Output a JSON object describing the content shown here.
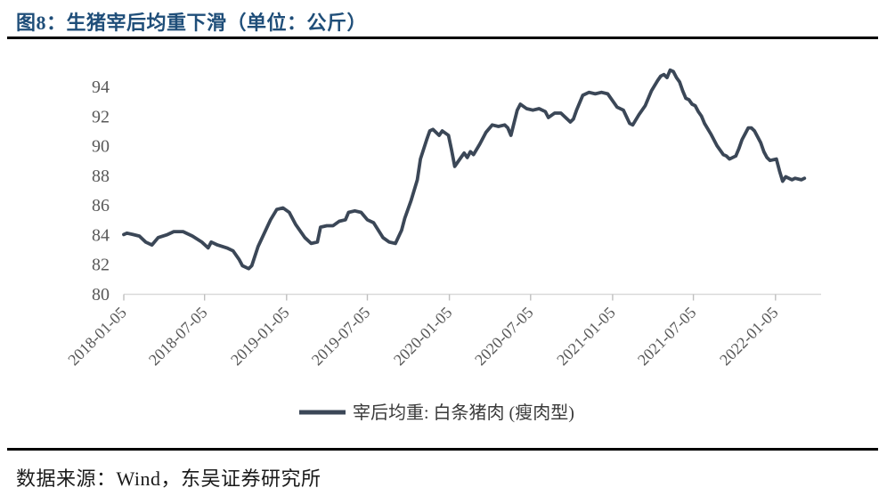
{
  "title": "图8：生猪宰后均重下滑（单位：公斤）",
  "footer": "数据来源：Wind，东吴证券研究所",
  "colors": {
    "title_text": "#1f4e79",
    "line": "#3b4757",
    "axis_label": "#595959",
    "axis_line": "#d9d9d9",
    "tick_mark": "#bfbfbf",
    "legend_text": "#3a3a3a",
    "divider": "#000000"
  },
  "chart_data": {
    "type": "line",
    "title": "图8：生猪宰后均重下滑（单位：公斤）",
    "ylabel": "",
    "xlabel": "",
    "unit": "公斤",
    "ylim": [
      80,
      96
    ],
    "yticks": [
      80,
      82,
      84,
      86,
      88,
      90,
      92,
      94
    ],
    "xticks": [
      "2018-01-05",
      "2018-07-05",
      "2019-01-05",
      "2019-07-05",
      "2020-01-05",
      "2020-07-05",
      "2021-01-05",
      "2021-07-05",
      "2022-01-05"
    ],
    "grid": false,
    "legend_position": "bottom-center",
    "legend": [
      {
        "name": "宰后均重: 白条猪肉 (瘦肉型)",
        "color": "#3b4757"
      }
    ],
    "series": [
      {
        "name": "宰后均重: 白条猪肉 (瘦肉型)",
        "points": [
          [
            "2018-01-05",
            84.0
          ],
          [
            "2018-01-12",
            84.1
          ],
          [
            "2018-01-26",
            84.0
          ],
          [
            "2018-02-09",
            83.9
          ],
          [
            "2018-02-23",
            83.5
          ],
          [
            "2018-03-09",
            83.3
          ],
          [
            "2018-03-23",
            83.8
          ],
          [
            "2018-04-13",
            84.0
          ],
          [
            "2018-04-27",
            84.2
          ],
          [
            "2018-05-18",
            84.2
          ],
          [
            "2018-06-08",
            83.9
          ],
          [
            "2018-06-29",
            83.5
          ],
          [
            "2018-07-13",
            83.1
          ],
          [
            "2018-07-20",
            83.5
          ],
          [
            "2018-08-03",
            83.3
          ],
          [
            "2018-08-24",
            83.1
          ],
          [
            "2018-09-07",
            82.9
          ],
          [
            "2018-09-21",
            82.3
          ],
          [
            "2018-09-28",
            81.9
          ],
          [
            "2018-10-12",
            81.7
          ],
          [
            "2018-10-19",
            81.9
          ],
          [
            "2018-11-02",
            83.2
          ],
          [
            "2018-11-16",
            84.1
          ],
          [
            "2018-11-30",
            85.0
          ],
          [
            "2018-12-14",
            85.7
          ],
          [
            "2018-12-28",
            85.8
          ],
          [
            "2019-01-11",
            85.5
          ],
          [
            "2019-01-25",
            84.7
          ],
          [
            "2019-02-15",
            83.8
          ],
          [
            "2019-03-01",
            83.4
          ],
          [
            "2019-03-15",
            83.5
          ],
          [
            "2019-03-22",
            84.5
          ],
          [
            "2019-04-05",
            84.6
          ],
          [
            "2019-04-19",
            84.6
          ],
          [
            "2019-05-03",
            84.9
          ],
          [
            "2019-05-17",
            85.0
          ],
          [
            "2019-05-24",
            85.5
          ],
          [
            "2019-06-07",
            85.6
          ],
          [
            "2019-06-21",
            85.5
          ],
          [
            "2019-07-05",
            85.0
          ],
          [
            "2019-07-19",
            84.8
          ],
          [
            "2019-08-09",
            83.8
          ],
          [
            "2019-08-23",
            83.5
          ],
          [
            "2019-09-06",
            83.4
          ],
          [
            "2019-09-20",
            84.3
          ],
          [
            "2019-09-27",
            85.1
          ],
          [
            "2019-10-11",
            86.3
          ],
          [
            "2019-10-25",
            87.7
          ],
          [
            "2019-11-01",
            89.1
          ],
          [
            "2019-11-15",
            90.4
          ],
          [
            "2019-11-22",
            91.0
          ],
          [
            "2019-11-29",
            91.1
          ],
          [
            "2019-12-13",
            90.7
          ],
          [
            "2019-12-20",
            91.0
          ],
          [
            "2020-01-03",
            90.7
          ],
          [
            "2020-01-10",
            89.7
          ],
          [
            "2020-01-17",
            88.6
          ],
          [
            "2020-01-31",
            89.2
          ],
          [
            "2020-02-07",
            89.5
          ],
          [
            "2020-02-14",
            89.2
          ],
          [
            "2020-02-21",
            89.6
          ],
          [
            "2020-02-28",
            89.4
          ],
          [
            "2020-03-13",
            90.1
          ],
          [
            "2020-03-27",
            90.9
          ],
          [
            "2020-04-10",
            91.4
          ],
          [
            "2020-04-24",
            91.3
          ],
          [
            "2020-05-08",
            91.4
          ],
          [
            "2020-05-15",
            91.2
          ],
          [
            "2020-05-22",
            90.7
          ],
          [
            "2020-06-05",
            92.4
          ],
          [
            "2020-06-12",
            92.8
          ],
          [
            "2020-06-26",
            92.5
          ],
          [
            "2020-07-10",
            92.4
          ],
          [
            "2020-07-24",
            92.5
          ],
          [
            "2020-08-07",
            92.3
          ],
          [
            "2020-08-14",
            91.9
          ],
          [
            "2020-08-28",
            92.2
          ],
          [
            "2020-09-11",
            92.2
          ],
          [
            "2020-10-02",
            91.6
          ],
          [
            "2020-10-09",
            91.8
          ],
          [
            "2020-10-16",
            92.4
          ],
          [
            "2020-10-30",
            93.4
          ],
          [
            "2020-11-13",
            93.6
          ],
          [
            "2020-11-27",
            93.5
          ],
          [
            "2020-12-11",
            93.6
          ],
          [
            "2020-12-25",
            93.5
          ],
          [
            "2021-01-08",
            92.9
          ],
          [
            "2021-01-15",
            92.6
          ],
          [
            "2021-01-29",
            92.4
          ],
          [
            "2021-02-12",
            91.5
          ],
          [
            "2021-02-19",
            91.4
          ],
          [
            "2021-03-05",
            92.1
          ],
          [
            "2021-03-19",
            92.7
          ],
          [
            "2021-04-02",
            93.7
          ],
          [
            "2021-04-16",
            94.4
          ],
          [
            "2021-04-23",
            94.7
          ],
          [
            "2021-04-30",
            94.8
          ],
          [
            "2021-05-07",
            94.6
          ],
          [
            "2021-05-14",
            95.1
          ],
          [
            "2021-05-21",
            95.0
          ],
          [
            "2021-05-28",
            94.6
          ],
          [
            "2021-06-04",
            94.3
          ],
          [
            "2021-06-11",
            93.7
          ],
          [
            "2021-06-18",
            93.2
          ],
          [
            "2021-06-25",
            93.1
          ],
          [
            "2021-07-02",
            92.8
          ],
          [
            "2021-07-09",
            92.7
          ],
          [
            "2021-07-16",
            92.3
          ],
          [
            "2021-07-23",
            92.0
          ],
          [
            "2021-07-30",
            91.5
          ],
          [
            "2021-08-13",
            90.8
          ],
          [
            "2021-08-27",
            90.0
          ],
          [
            "2021-09-10",
            89.4
          ],
          [
            "2021-09-17",
            89.3
          ],
          [
            "2021-09-24",
            89.1
          ],
          [
            "2021-10-08",
            89.3
          ],
          [
            "2021-10-15",
            89.8
          ],
          [
            "2021-10-22",
            90.4
          ],
          [
            "2021-10-29",
            90.8
          ],
          [
            "2021-11-05",
            91.2
          ],
          [
            "2021-11-12",
            91.2
          ],
          [
            "2021-11-19",
            91.0
          ],
          [
            "2021-12-03",
            90.2
          ],
          [
            "2021-12-10",
            89.6
          ],
          [
            "2021-12-17",
            89.2
          ],
          [
            "2021-12-24",
            89.0
          ],
          [
            "2022-01-07",
            89.1
          ],
          [
            "2022-01-14",
            88.3
          ],
          [
            "2022-01-21",
            87.6
          ],
          [
            "2022-01-28",
            87.9
          ],
          [
            "2022-02-11",
            87.7
          ],
          [
            "2022-02-18",
            87.8
          ],
          [
            "2022-03-04",
            87.7
          ],
          [
            "2022-03-11",
            87.8
          ]
        ]
      }
    ]
  }
}
